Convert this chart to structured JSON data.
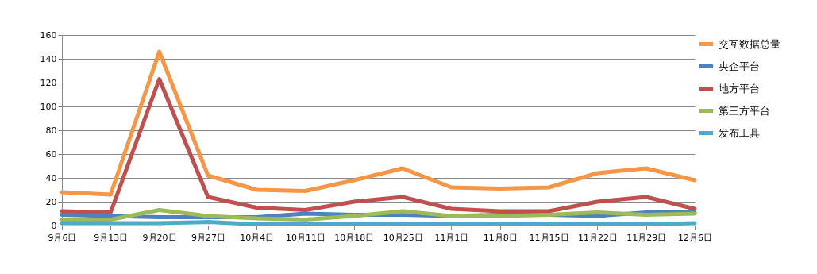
{
  "chart_data": {
    "type": "line",
    "categories": [
      "9月6日",
      "9月13日",
      "9月20日",
      "9月27日",
      "10月4日",
      "10月11日",
      "10月18日",
      "10月25日",
      "11月1日",
      "11月8日",
      "11月15日",
      "11月22日",
      "11月29日",
      "12月6日"
    ],
    "series": [
      {
        "name": "交互数据总量",
        "color": "#f79646",
        "values": [
          28,
          26,
          146,
          42,
          30,
          29,
          38,
          48,
          32,
          31,
          32,
          44,
          48,
          38
        ]
      },
      {
        "name": "央企平台",
        "color": "#4f81bd",
        "values": [
          9,
          8,
          7,
          7,
          7,
          10,
          9,
          9,
          8,
          9,
          9,
          8,
          11,
          11
        ]
      },
      {
        "name": "地方平台",
        "color": "#c0504d",
        "values": [
          12,
          11,
          123,
          24,
          15,
          13,
          20,
          24,
          14,
          12,
          12,
          20,
          24,
          14
        ]
      },
      {
        "name": "第三方平台",
        "color": "#9bbb59",
        "values": [
          5,
          5,
          13,
          8,
          6,
          5,
          8,
          12,
          8,
          8,
          9,
          11,
          9,
          10
        ]
      },
      {
        "name": "发布工具",
        "color": "#4bacc6",
        "values": [
          2,
          2,
          2,
          3,
          1,
          1,
          1,
          1,
          1,
          1,
          1,
          1,
          1,
          2
        ]
      }
    ],
    "ylim": [
      0,
      160
    ],
    "yticks": [
      0,
      20,
      40,
      60,
      80,
      100,
      120,
      140,
      160
    ],
    "grid": "y",
    "legend": "right",
    "marker": "none",
    "line_style": "solid"
  }
}
